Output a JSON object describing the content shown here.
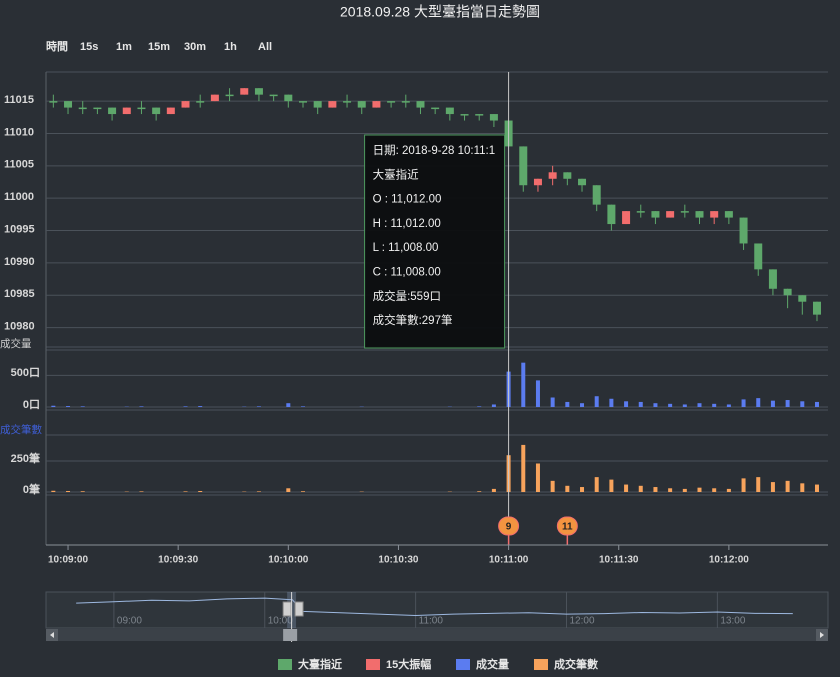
{
  "chart_data": {
    "type": "candlestick",
    "title": "2018.09.28 大型臺指當日走勢圖",
    "range_buttons": [
      "時間",
      "15s",
      "1m",
      "15m",
      "30m",
      "1h",
      "All"
    ],
    "x": [
      36536,
      36540,
      36544,
      36548,
      36552,
      36556,
      36560,
      36564,
      36568,
      36572,
      36576,
      36580,
      36584,
      36588,
      36592,
      36596,
      36600,
      36604,
      36608,
      36612,
      36616,
      36620,
      36624,
      36628,
      36632,
      36636,
      36640,
      36644,
      36648,
      36652,
      36656,
      36660,
      36664,
      36668,
      36672,
      36676,
      36680,
      36684,
      36688,
      36692,
      36696,
      36700,
      36704,
      36708,
      36712,
      36716,
      36720,
      36724,
      36728,
      36732,
      36736,
      36740,
      36744
    ],
    "xlim": [
      36534,
      36747
    ],
    "xticks": [
      {
        "value": 36540,
        "label": "10:09:00"
      },
      {
        "value": 36570,
        "label": "10:09:30"
      },
      {
        "value": 36600,
        "label": "10:10:00"
      },
      {
        "value": 36630,
        "label": "10:10:30"
      },
      {
        "value": 36660,
        "label": "10:11:00"
      },
      {
        "value": 36690,
        "label": "10:11:30"
      },
      {
        "value": 36720,
        "label": "10:12:00"
      }
    ],
    "ylim": [
      10977,
      11019.5
    ],
    "yticks": [
      10980,
      10985,
      10990,
      10995,
      11000,
      11005,
      11010,
      11015
    ],
    "grid": true,
    "series": [
      {
        "name": "大臺指近",
        "color": "#5ea86b",
        "open": [
          11015,
          11015,
          11014,
          11014,
          11014,
          11013,
          11014,
          11014,
          11013,
          11014,
          11015,
          11015,
          11016,
          11016,
          11017,
          11016,
          11016,
          11015,
          11015,
          11014,
          11015,
          11015,
          11014,
          11015,
          11015,
          11015,
          11014,
          11014,
          11013,
          11013,
          11013,
          11012,
          11008,
          11002,
          11003,
          11004,
          11003,
          11002,
          10999,
          10996,
          10998,
          10998,
          10997,
          10998,
          10998,
          10997,
          10998,
          10997,
          10993,
          10989,
          10986,
          10985,
          10984
        ],
        "high": [
          11016,
          11015,
          11015,
          11014,
          11014,
          11014,
          11015,
          11014,
          11014,
          11015,
          11016,
          11016,
          11017,
          11017,
          11017,
          11016,
          11016,
          11015,
          11015,
          11015,
          11016,
          11015,
          11015,
          11015,
          11016,
          11015,
          11014,
          11014,
          11013,
          11013,
          11013,
          11012,
          11008,
          11003,
          11005,
          11004,
          11003,
          11002,
          10999,
          10998,
          10999,
          10998,
          10998,
          10999,
          10998,
          10998,
          10998,
          10997,
          10993,
          10989,
          10986,
          10985,
          10984
        ],
        "low": [
          11014,
          11013,
          11013,
          11013,
          11012,
          11013,
          11013,
          11012,
          11013,
          11014,
          11014,
          11015,
          11015,
          11016,
          11015,
          11015,
          11014,
          11014,
          11013,
          11014,
          11014,
          11013,
          11014,
          11014,
          11014,
          11013,
          11013,
          11012,
          11012,
          11012,
          11011,
          11008,
          11001,
          11001,
          11002,
          11002,
          11001,
          10998,
          10995,
          10996,
          10997,
          10996,
          10997,
          10997,
          10996,
          10996,
          10996,
          10992,
          10988,
          10985,
          10983,
          10982,
          10981
        ],
        "close": [
          11015,
          11014,
          11014,
          11014,
          11013,
          11014,
          11014,
          11013,
          11014,
          11015,
          11015,
          11016,
          11016,
          11017,
          11016,
          11016,
          11015,
          11015,
          11014,
          11015,
          11015,
          11014,
          11015,
          11015,
          11015,
          11014,
          11014,
          11013,
          11013,
          11013,
          11012,
          11008,
          11002,
          11003,
          11004,
          11003,
          11002,
          10999,
          10996,
          10998,
          10998,
          10997,
          10998,
          10998,
          10997,
          10998,
          10997,
          10993,
          10989,
          10986,
          10985,
          10984,
          10982
        ]
      },
      {
        "name": "15大振幅",
        "color": "#f26d6d",
        "flags": [
          {
            "x": 36660,
            "label": "9"
          },
          {
            "x": 36676,
            "label": "11"
          }
        ]
      },
      {
        "name": "成交量",
        "color": "#5b7cf0",
        "values": [
          20,
          15,
          10,
          0,
          0,
          5,
          10,
          0,
          0,
          10,
          15,
          0,
          0,
          5,
          10,
          0,
          60,
          10,
          0,
          0,
          0,
          5,
          0,
          0,
          0,
          0,
          0,
          5,
          0,
          10,
          40,
          559,
          700,
          420,
          150,
          80,
          60,
          170,
          130,
          90,
          80,
          60,
          50,
          40,
          60,
          50,
          40,
          120,
          140,
          100,
          110,
          90,
          80
        ],
        "ylim": [
          0,
          900
        ],
        "yticks": [
          {
            "value": 0,
            "label": "0口"
          },
          {
            "value": 500,
            "label": "500口"
          }
        ]
      },
      {
        "name": "成交筆數",
        "color": "#f7a35c",
        "values": [
          10,
          8,
          6,
          0,
          0,
          3,
          5,
          0,
          0,
          5,
          8,
          0,
          0,
          3,
          5,
          0,
          30,
          6,
          0,
          0,
          0,
          3,
          0,
          0,
          0,
          0,
          0,
          3,
          0,
          6,
          25,
          297,
          380,
          230,
          90,
          50,
          40,
          120,
          100,
          60,
          50,
          40,
          30,
          25,
          35,
          30,
          25,
          110,
          120,
          80,
          90,
          70,
          60
        ],
        "ylim": [
          0,
          460
        ],
        "yticks": [
          {
            "value": 0,
            "label": "0筆"
          },
          {
            "value": 250,
            "label": "250筆"
          }
        ]
      }
    ],
    "tooltip": {
      "x": 36660,
      "lines": [
        "日期: 2018-9-28 10:11:1",
        "大臺指近",
        "O : 11,012.00",
        "H : 11,012.00",
        "L : 11,008.00",
        "C : 11,008.00",
        "成交量:559口",
        "成交筆數:297筆"
      ]
    },
    "navigator": {
      "x": [
        525,
        540,
        555,
        570,
        585,
        600,
        611,
        615,
        630,
        645,
        660,
        675,
        690,
        705,
        720,
        735,
        750,
        765,
        780,
        795,
        810
      ],
      "values": [
        11040,
        11045,
        11050,
        11048,
        11055,
        11058,
        11052,
        11010,
        11005,
        11000,
        10995,
        11000,
        11003,
        11005,
        11000,
        11002,
        11006,
        11004,
        11008,
        11003,
        11002
      ],
      "xlim": [
        513,
        824
      ],
      "ylim": [
        10950,
        11080
      ],
      "xticks": [
        {
          "value": 540,
          "label": "09:00"
        },
        {
          "value": 600,
          "label": "10:00"
        },
        {
          "value": 660,
          "label": "11:00"
        },
        {
          "value": 720,
          "label": "12:00"
        },
        {
          "value": 780,
          "label": "13:00"
        }
      ]
    }
  }
}
